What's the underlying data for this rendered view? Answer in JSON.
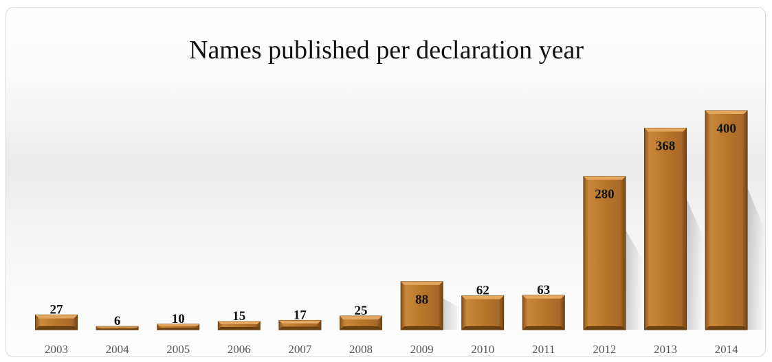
{
  "chart_data": {
    "type": "bar",
    "title": "Names published per declaration year",
    "categories": [
      "2003",
      "2004",
      "2005",
      "2006",
      "2007",
      "2008",
      "2009",
      "2010",
      "2011",
      "2012",
      "2013",
      "2014"
    ],
    "values": [
      27,
      6,
      10,
      15,
      17,
      25,
      88,
      62,
      63,
      280,
      368,
      400
    ],
    "xlabel": "",
    "ylabel": "",
    "ylim": [
      0,
      400
    ],
    "grid": false,
    "legend": "none",
    "colors": {
      "bar": "#b8762b",
      "bar_light": "#d9984a",
      "bar_dark": "#7a4a16",
      "label": "#111111",
      "tick": "#555555"
    }
  }
}
